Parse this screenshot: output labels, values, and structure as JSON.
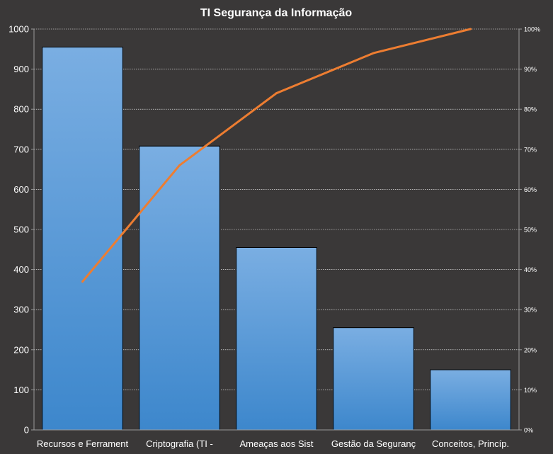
{
  "chart_data": {
    "type": "bar",
    "title": "TI Segurança da Informação",
    "categories": [
      "Recursos e Ferrament",
      "Criptografia (TI -",
      "Ameaças aos Sist",
      "Gestão da Seguranç",
      "Conceitos, Princíp."
    ],
    "values": [
      955,
      708,
      455,
      255,
      150
    ],
    "ylim": [
      0,
      1000
    ],
    "yticks": [
      "0",
      "100",
      "200",
      "300",
      "400",
      "500",
      "600",
      "700",
      "800",
      "900",
      "1000"
    ],
    "y2lim": [
      0,
      1
    ],
    "y2ticks": [
      "0%",
      "10%",
      "20%",
      "30%",
      "40%",
      "50%",
      "60%",
      "70%",
      "80%",
      "90%",
      "100%"
    ],
    "cumulative_percent": [
      0.37,
      0.66,
      0.84,
      0.94,
      1.0
    ],
    "grid": true,
    "colors": {
      "bar_top": "#7aaee2",
      "bar_bottom": "#3d87cc",
      "line": "#ed7d31",
      "grid": "#ffffff",
      "background": "#3a3838"
    }
  }
}
